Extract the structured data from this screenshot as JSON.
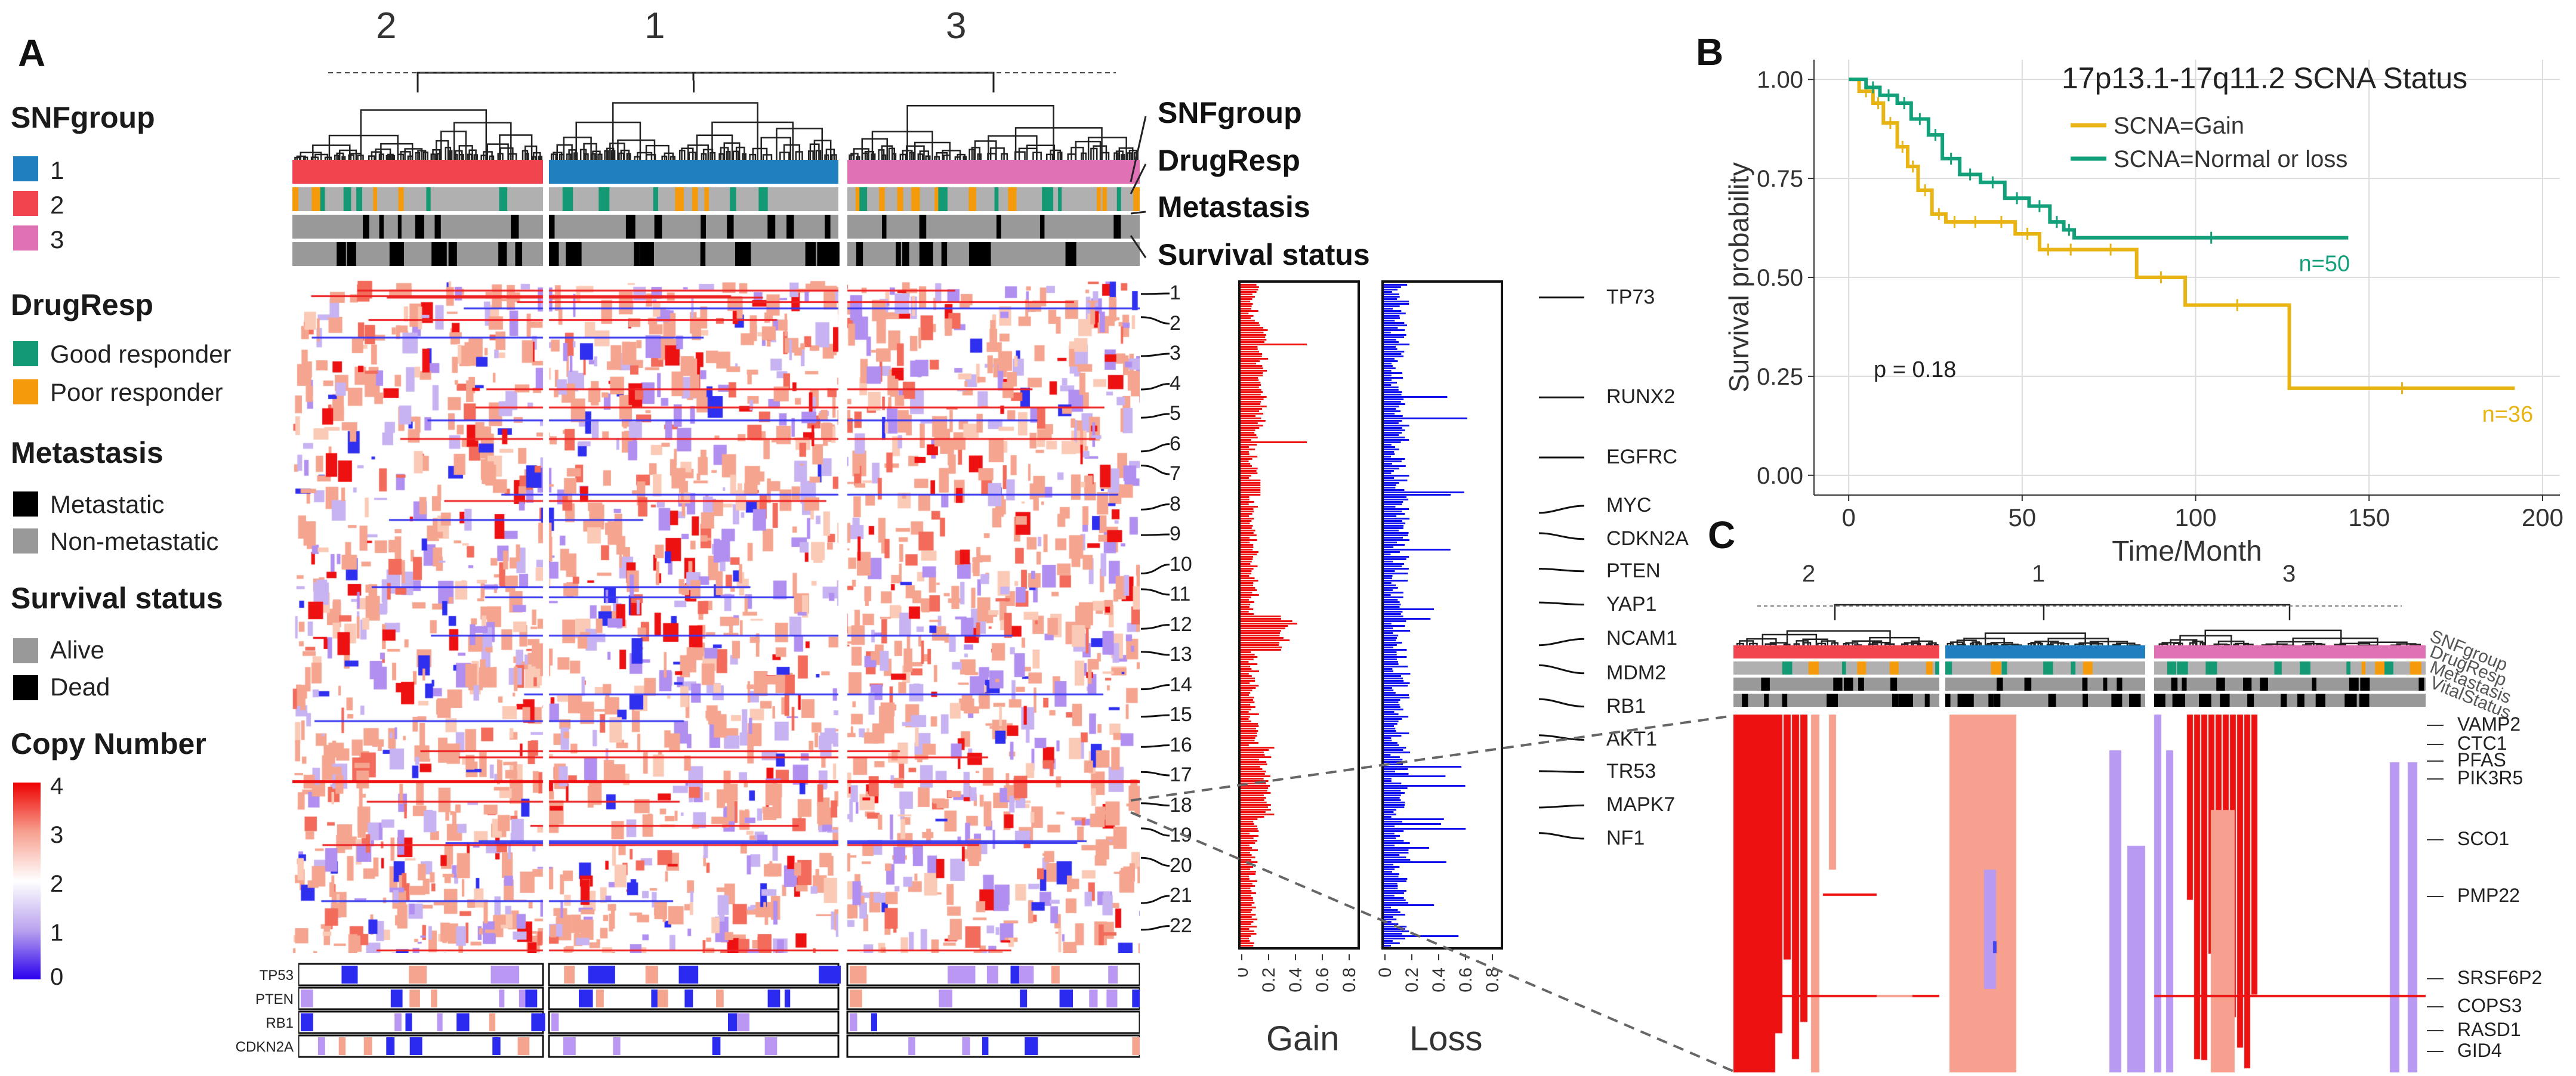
{
  "panels": {
    "a": "A",
    "b": "B",
    "c": "C"
  },
  "panelA": {
    "cluster_labels": [
      "2",
      "1",
      "3"
    ],
    "track_labels": [
      "SNFgroup",
      "DrugResp",
      "Metastasis",
      "Survival status"
    ],
    "legend": {
      "snfgroup": {
        "title": "SNFgroup",
        "items": [
          {
            "label": "1",
            "color": "#1f7fbf"
          },
          {
            "label": "2",
            "color": "#f0444f"
          },
          {
            "label": "3",
            "color": "#e071b4"
          }
        ]
      },
      "drugresp": {
        "title": "DrugResp",
        "items": [
          {
            "label": "Good responder",
            "color": "#139a74"
          },
          {
            "label": "Poor responder",
            "color": "#f59b0b"
          }
        ]
      },
      "metastasis": {
        "title": "Metastasis",
        "items": [
          {
            "label": "Metastatic",
            "color": "#000000"
          },
          {
            "label": "Non-metastatic",
            "color": "#999999"
          }
        ]
      },
      "survival": {
        "title": "Survival status",
        "items": [
          {
            "label": "Alive",
            "color": "#999999"
          },
          {
            "label": "Dead",
            "color": "#000000"
          }
        ]
      },
      "copy_number": {
        "title": "Copy Number",
        "ticks": [
          "4",
          "3",
          "2",
          "1",
          "0"
        ]
      }
    },
    "chromosomes": [
      "1",
      "2",
      "3",
      "4",
      "5",
      "6",
      "7",
      "8",
      "9",
      "10",
      "11",
      "12",
      "13",
      "14",
      "15",
      "16",
      "17",
      "18",
      "19",
      "20",
      "21",
      "22"
    ],
    "bottom_genes": [
      "TP53",
      "PTEN",
      "RB1",
      "CDKN2A"
    ],
    "bar_axis_ticks": [
      "0",
      "0.2",
      "0.4",
      "0.6",
      "0.8"
    ],
    "gain_label": "Gain",
    "loss_label": "Loss",
    "marker_genes": [
      "TP73",
      "RUNX2",
      "EGFRC",
      "MYC",
      "CDKN2A",
      "PTEN",
      "YAP1",
      "NCAM1",
      "MDM2",
      "RB1",
      "AKT1",
      "TR53",
      "MAPK7",
      "NF1"
    ]
  },
  "chart_data": {
    "type": "line",
    "title": "17p13.1-17q11.2 SCNA Status",
    "xlabel": "Time/Month",
    "ylabel": "Survival probability",
    "xlim": [
      -10,
      205
    ],
    "ylim": [
      -0.05,
      1.05
    ],
    "xticks": [
      0,
      50,
      100,
      150,
      200
    ],
    "yticks": [
      0.0,
      0.25,
      0.5,
      0.75,
      1.0
    ],
    "ytick_labels": [
      "0.00",
      "0.25",
      "0.50",
      "0.75",
      "1.00"
    ],
    "series": [
      {
        "name": "SCNA=Gain",
        "color": "#e8b414",
        "n_label": "n=36",
        "x": [
          0,
          3,
          7,
          10,
          14,
          17,
          20,
          24,
          28,
          33,
          40,
          48,
          55,
          60,
          68,
          83,
          97,
          127,
          192
        ],
        "y": [
          1.0,
          0.97,
          0.94,
          0.89,
          0.83,
          0.78,
          0.72,
          0.66,
          0.64,
          0.64,
          0.64,
          0.61,
          0.57,
          0.57,
          0.57,
          0.5,
          0.43,
          0.22,
          0.22
        ]
      },
      {
        "name": "SCNA=Normal or loss",
        "color": "#12a07a",
        "n_label": "n=50",
        "x": [
          0,
          5,
          9,
          14,
          18,
          23,
          27,
          32,
          38,
          45,
          52,
          58,
          62,
          65,
          144
        ],
        "y": [
          1.0,
          0.98,
          0.96,
          0.94,
          0.9,
          0.86,
          0.8,
          0.76,
          0.74,
          0.7,
          0.68,
          0.64,
          0.62,
          0.6,
          0.6
        ]
      }
    ],
    "pvalue": "p = 0.18"
  },
  "panelC": {
    "cluster_labels": [
      "2",
      "1",
      "3"
    ],
    "track_labels": [
      "SNFgroup",
      "DrugResp",
      "Metastasis",
      "VitalStatus"
    ],
    "genes": [
      "VAMP2",
      "CTC1",
      "PFAS",
      "PIK3R5",
      "SCO1",
      "PMP22",
      "SRSF6P2",
      "COPS3",
      "RASD1",
      "GID4"
    ]
  }
}
